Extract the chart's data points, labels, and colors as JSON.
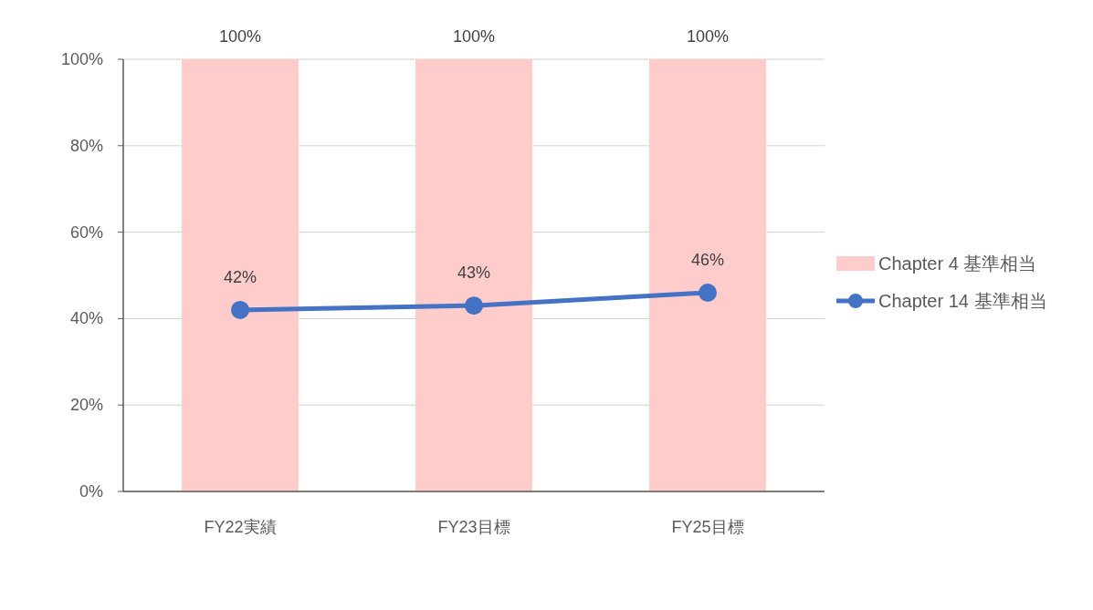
{
  "chart_data": {
    "type": "bar",
    "categories": [
      "FY22実績",
      "FY23目標",
      "FY25目標"
    ],
    "series": [
      {
        "name": "Chapter 4 基準相当",
        "color": "#ffcccc",
        "values": [
          100,
          100,
          100
        ],
        "value_labels": [
          "100%",
          "100%",
          "100%"
        ]
      },
      {
        "name": "Chapter 14 基準相当",
        "type": "line",
        "color": "#4472c4",
        "values": [
          42,
          43,
          46
        ],
        "value_labels": [
          "42%",
          "43%",
          "46%"
        ]
      }
    ],
    "ylim": [
      0,
      100
    ],
    "yticks": [
      {
        "value": 0,
        "label": "0%"
      },
      {
        "value": 20,
        "label": "20%"
      },
      {
        "value": 40,
        "label": "40%"
      },
      {
        "value": 60,
        "label": "60%"
      },
      {
        "value": 80,
        "label": "80%"
      },
      {
        "value": 100,
        "label": "100%"
      }
    ],
    "grid": "y",
    "legend": "right",
    "marker": "circle"
  }
}
